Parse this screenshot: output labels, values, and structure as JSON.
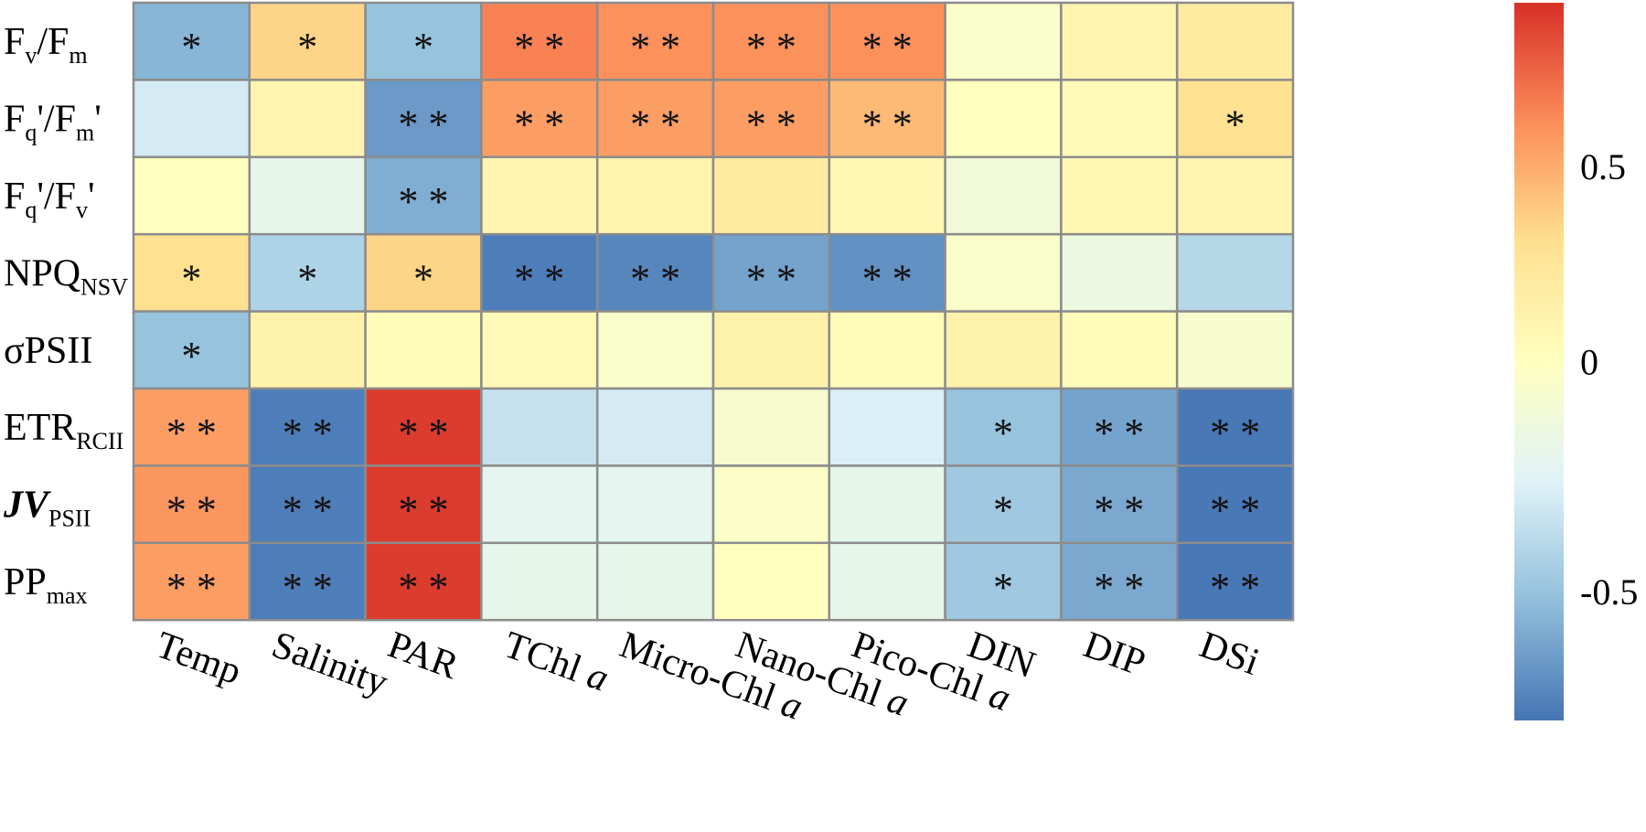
{
  "chart_data": {
    "type": "heatmap",
    "rows": [
      {
        "base": "F",
        "sub": "v",
        "mid": "/F",
        "sub2": "m",
        "italic": false,
        "bold": false
      },
      {
        "base": "F",
        "sub": "q",
        "mid": "'/F",
        "sub2": "m",
        "tail": "'",
        "italic": false,
        "bold": false
      },
      {
        "base": "F",
        "sub": "q",
        "mid": "'/F",
        "sub2": "v",
        "tail": "'",
        "italic": false,
        "bold": false
      },
      {
        "base": "NPQ",
        "sub": "NSV",
        "italic": false,
        "bold": false
      },
      {
        "base": "σPSII",
        "italic": false,
        "bold": false
      },
      {
        "base": "ETR",
        "sub": "RCII",
        "italic": false,
        "bold": false
      },
      {
        "base": "JV",
        "sub": "PSII",
        "italic": true,
        "bold": true
      },
      {
        "base": "PP",
        "sub": "max",
        "italic": false,
        "bold": false
      }
    ],
    "columns": [
      {
        "label": "Temp"
      },
      {
        "label": "Salinity"
      },
      {
        "label": "PAR"
      },
      {
        "label": "TChl ",
        "ital": "a"
      },
      {
        "label": "Micro-Chl ",
        "ital": "a"
      },
      {
        "label": "Nano-Chl ",
        "ital": "a"
      },
      {
        "label": "Pico-Chl ",
        "ital": "a"
      },
      {
        "label": "DIN"
      },
      {
        "label": "DIP"
      },
      {
        "label": "DSi"
      }
    ],
    "values": [
      [
        -0.55,
        0.35,
        -0.5,
        0.65,
        0.6,
        0.6,
        0.6,
        -0.05,
        0.1,
        0.2
      ],
      [
        -0.3,
        0.1,
        -0.65,
        0.55,
        0.55,
        0.55,
        0.45,
        0.0,
        0.05,
        0.3
      ],
      [
        0.0,
        -0.2,
        -0.58,
        0.1,
        0.12,
        0.2,
        0.08,
        -0.12,
        0.07,
        0.1
      ],
      [
        0.3,
        -0.42,
        0.35,
        -0.75,
        -0.72,
        -0.62,
        -0.68,
        -0.05,
        -0.15,
        -0.4
      ],
      [
        -0.5,
        0.13,
        0.03,
        0.05,
        -0.05,
        0.13,
        0.03,
        0.13,
        0.03,
        -0.07
      ],
      [
        0.55,
        -0.75,
        0.88,
        -0.35,
        -0.3,
        -0.07,
        -0.28,
        -0.5,
        -0.62,
        -0.77
      ],
      [
        0.58,
        -0.75,
        0.88,
        -0.22,
        -0.22,
        -0.03,
        -0.2,
        -0.47,
        -0.6,
        -0.77
      ],
      [
        0.55,
        -0.75,
        0.88,
        -0.2,
        -0.2,
        0.0,
        -0.2,
        -0.47,
        -0.6,
        -0.77
      ]
    ],
    "significance": [
      [
        "*",
        "*",
        "*",
        "**",
        "**",
        "**",
        "**",
        "",
        "",
        ""
      ],
      [
        "",
        "",
        "**",
        "**",
        "**",
        "**",
        "**",
        "",
        "",
        "*"
      ],
      [
        "",
        "",
        "**",
        "",
        "",
        "",
        "",
        "",
        "",
        ""
      ],
      [
        "*",
        "*",
        "*",
        "**",
        "**",
        "**",
        "**",
        "",
        "",
        ""
      ],
      [
        "*",
        "",
        "",
        "",
        "",
        "",
        "",
        "",
        "",
        ""
      ],
      [
        "**",
        "**",
        "**",
        "",
        "",
        "",
        "",
        "*",
        "**",
        "**"
      ],
      [
        "**",
        "**",
        "**",
        "",
        "",
        "",
        "",
        "*",
        "**",
        "**"
      ],
      [
        "**",
        "**",
        "**",
        "",
        "",
        "",
        "",
        "*",
        "**",
        "**"
      ]
    ],
    "colorbar": {
      "range": [
        -0.78,
        0.92
      ],
      "ticks": [
        {
          "value": 0.5,
          "label": "0.5"
        },
        {
          "value": 0,
          "label": "0"
        },
        {
          "value": -0.5,
          "label": "-0.5"
        }
      ],
      "stops": [
        "#4575b4",
        "#91bfdb",
        "#e0f3f8",
        "#ffffbf",
        "#fee090",
        "#fc8d59",
        "#d73027"
      ]
    },
    "title": "",
    "xlabel": "",
    "ylabel": ""
  }
}
